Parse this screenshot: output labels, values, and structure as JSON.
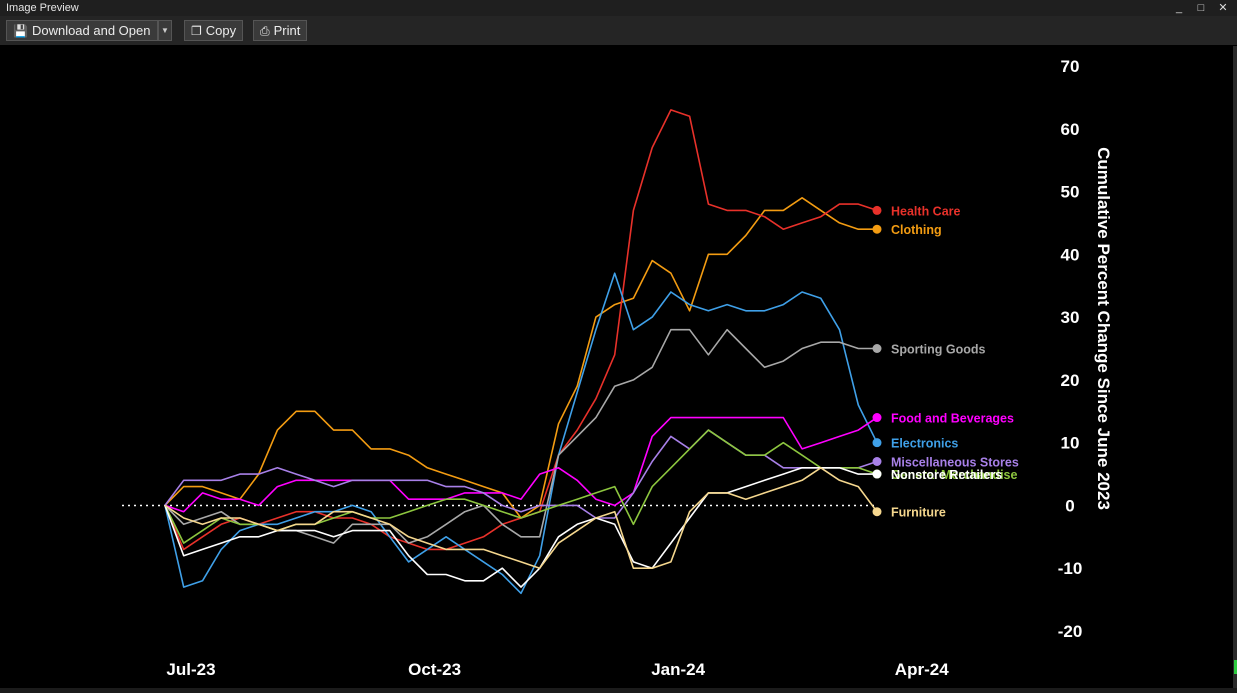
{
  "window": {
    "title": "Image Preview",
    "controls": {
      "minimize": "_",
      "maximize": "□",
      "close": "✕"
    }
  },
  "toolbar": {
    "download_label": "Download and Open",
    "copy_label": "Copy",
    "print_label": "Print"
  },
  "chart_data": {
    "type": "line",
    "title": "",
    "xlabel": "",
    "ylabel": "Cumulative Percent Change Since June 2023",
    "ylim": [
      -20,
      70
    ],
    "yticks": [
      70,
      60,
      50,
      40,
      30,
      20,
      10,
      0,
      -10,
      -20
    ],
    "ytick_labels": [
      "70",
      "60",
      "50",
      "40",
      "30",
      "20",
      "10",
      "0",
      "-10",
      "-20"
    ],
    "y_axis_side": "right",
    "x_ticks": [
      "Jul-23",
      "Oct-23",
      "Jan-24",
      "Apr-24"
    ],
    "x_tick_weeks": [
      0,
      13,
      26,
      39
    ],
    "xlim": [
      0,
      41
    ],
    "zero_line": "dotted white",
    "grid": false,
    "legend": "labels at line ends (right)",
    "background": "#000000",
    "series": [
      {
        "name": "Clothing",
        "color": "#f39c12",
        "label_y": 44,
        "values": [
          0,
          3,
          3,
          2,
          1,
          5,
          12,
          15,
          15,
          12,
          12,
          9,
          9,
          8,
          6,
          5,
          4,
          3,
          2,
          -2,
          0,
          13,
          19,
          30,
          32,
          33,
          39,
          37,
          31,
          40,
          40,
          43,
          47,
          47,
          49,
          47,
          45,
          44,
          44
        ]
      },
      {
        "name": "Health Care",
        "color": "#e8312a",
        "label_y": 47,
        "values": [
          0,
          -7,
          -5,
          -3,
          -2,
          -3,
          -2,
          -1,
          -1,
          -2,
          -2,
          -3,
          -5,
          -6,
          -7,
          -7,
          -6,
          -5,
          -3,
          -2,
          -1,
          8,
          12,
          17,
          24,
          47,
          57,
          63,
          62,
          48,
          47,
          47,
          46,
          44,
          45,
          46,
          48,
          48,
          47
        ]
      },
      {
        "name": "Electronics",
        "color": "#3fa0e8",
        "label_y": 10,
        "values": [
          0,
          -13,
          -12,
          -7,
          -4,
          -3,
          -3,
          -2,
          -1,
          -1,
          0,
          -1,
          -5,
          -9,
          -7,
          -5,
          -7,
          -9,
          -11,
          -14,
          -8,
          8,
          18,
          28,
          37,
          28,
          30,
          34,
          32,
          31,
          32,
          31,
          31,
          32,
          34,
          33,
          28,
          16,
          10
        ]
      },
      {
        "name": "Sporting Goods",
        "color": "#a8a8a8",
        "label_y": 25,
        "values": [
          0,
          -3,
          -2,
          -1,
          -3,
          -3,
          -4,
          -4,
          -5,
          -6,
          -3,
          -3,
          -3,
          -6,
          -5,
          -3,
          -1,
          0,
          -3,
          -5,
          -5,
          8,
          11,
          14,
          19,
          20,
          22,
          28,
          28,
          24,
          28,
          25,
          22,
          23,
          25,
          26,
          26,
          25,
          25
        ]
      },
      {
        "name": "Food and Beverages",
        "color": "#ff00ff",
        "label_y": 14,
        "values": [
          0,
          -1,
          2,
          1,
          1,
          0,
          3,
          4,
          4,
          4,
          4,
          4,
          4,
          1,
          1,
          1,
          2,
          2,
          2,
          1,
          5,
          6,
          4,
          1,
          0,
          2,
          11,
          14,
          14,
          14,
          14,
          14,
          14,
          14,
          9,
          10,
          11,
          12,
          14
        ]
      },
      {
        "name": "Miscellaneous Stores",
        "color": "#a880e8",
        "label_y": 7,
        "values": [
          0,
          4,
          4,
          4,
          5,
          5,
          6,
          5,
          4,
          3,
          4,
          4,
          4,
          4,
          4,
          3,
          3,
          2,
          0,
          -1,
          0,
          0,
          0,
          -2,
          -2,
          2,
          7,
          11,
          9,
          12,
          10,
          8,
          8,
          6,
          6,
          6,
          6,
          6,
          7
        ]
      },
      {
        "name": "General Merchandise",
        "color": "#8dc63f",
        "label_y": 5,
        "values": [
          0,
          -6,
          -4,
          -2,
          -3,
          -3,
          -4,
          -3,
          -3,
          -2,
          -1,
          -2,
          -2,
          -1,
          0,
          1,
          1,
          0,
          -1,
          -2,
          -1,
          0,
          1,
          2,
          3,
          -3,
          3,
          6,
          9,
          12,
          10,
          8,
          8,
          10,
          8,
          6,
          6,
          6,
          5
        ]
      },
      {
        "name": "Nonstore Retailers",
        "color": "#ffffff",
        "label_y": 5,
        "values": [
          0,
          -8,
          -7,
          -6,
          -5,
          -5,
          -4,
          -4,
          -4,
          -5,
          -4,
          -4,
          -4,
          -8,
          -11,
          -11,
          -12,
          -12,
          -10,
          -13,
          -10,
          -5,
          -3,
          -2,
          -3,
          -9,
          -10,
          -6,
          -2,
          2,
          2,
          3,
          4,
          5,
          6,
          6,
          6,
          5,
          5
        ]
      },
      {
        "name": "Furniture",
        "color": "#f5d78e",
        "label_y": -1,
        "values": [
          0,
          -2,
          -3,
          -2,
          -2,
          -3,
          -4,
          -3,
          -3,
          -1,
          -1,
          -2,
          -3,
          -5,
          -6,
          -7,
          -7,
          -7,
          -8,
          -9,
          -10,
          -6,
          -4,
          -2,
          -1,
          -10,
          -10,
          -9,
          -1,
          2,
          2,
          1,
          2,
          3,
          4,
          6,
          4,
          3,
          -1
        ]
      }
    ]
  }
}
